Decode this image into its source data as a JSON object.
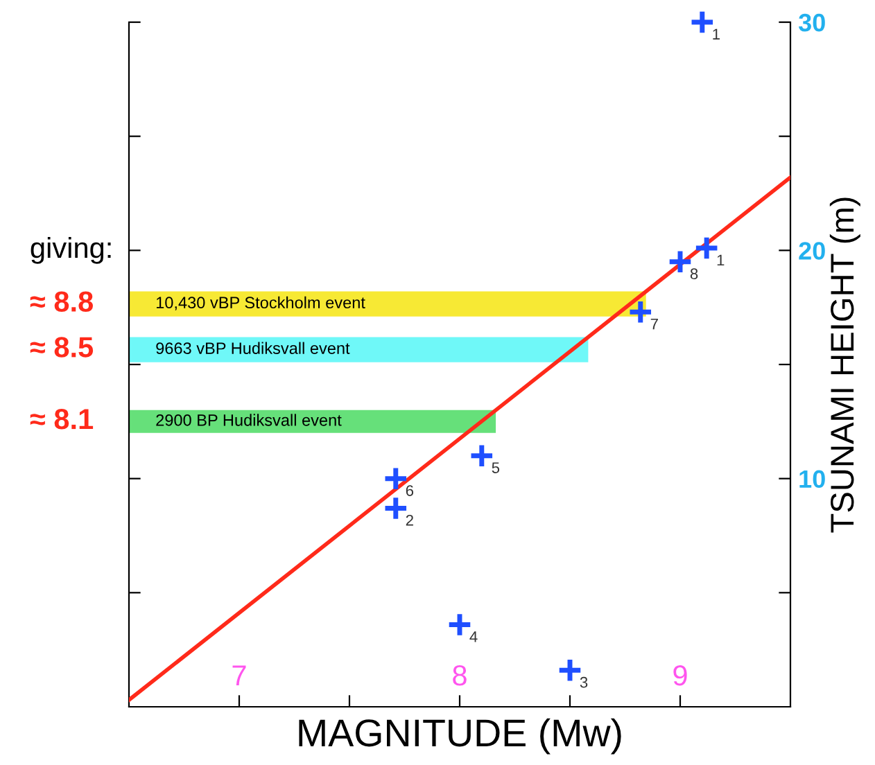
{
  "chart_data": {
    "type": "scatter",
    "xlabel": "MAGNITUDE (Mw)",
    "ylabel": "TSUNAMI HEIGHT (m)",
    "xlim": [
      6.5,
      9.5
    ],
    "ylim": [
      0,
      30
    ],
    "xticks": [
      7,
      {
        "value": 7.5,
        "label": null
      },
      8,
      {
        "value": 8.5,
        "label": null
      },
      9
    ],
    "yticks": [
      {
        "value": 5,
        "label": null
      },
      10,
      {
        "value": 15,
        "label": null
      },
      20,
      {
        "value": 25,
        "label": null
      },
      30
    ],
    "grid": false,
    "legend": false,
    "marker": "cross",
    "series": [
      {
        "color": "#1f4fff",
        "x": [
          9.1,
          9.12,
          9.0,
          8.82,
          8.1,
          7.71,
          7.71,
          8.0,
          8.5
        ],
        "values": [
          30,
          20.1,
          19.5,
          17.3,
          11.0,
          10.0,
          8.7,
          3.6,
          1.6
        ]
      },
      {
        "type": "line",
        "color": "#ff2a1a",
        "x": [
          6.5,
          9.5
        ],
        "values": [
          0.3,
          23.2
        ],
        "line_style": "solid",
        "marker": "none"
      }
    ],
    "bands": [
      {
        "axis": "y",
        "from": 17.1,
        "to": 18.2,
        "label": "10,430 vBP Stockholm event",
        "color": "#f7e934"
      },
      {
        "axis": "y",
        "from": 15.1,
        "to": 16.2,
        "label": "9663 vBP Hudiksvall event",
        "color": "#6ff8f8"
      },
      {
        "axis": "y",
        "from": 12.0,
        "to": 13.0,
        "label": "2900 BP Hudiksvall event",
        "color": "#66e07a"
      }
    ],
    "annotations": [
      "giving:",
      "≈ 8.8",
      "≈ 8.5",
      "≈ 8.1",
      {
        "text": "1",
        "x": 9.1,
        "y": 30
      },
      {
        "text": "1",
        "x": 9.12,
        "y": 20.1
      },
      {
        "text": "8",
        "x": 9.0,
        "y": 19.5
      },
      {
        "text": "7",
        "x": 8.82,
        "y": 17.3
      },
      {
        "text": "5",
        "x": 8.1,
        "y": 11.0
      },
      {
        "text": "6",
        "x": 7.71,
        "y": 10.0
      },
      {
        "text": "2",
        "x": 7.71,
        "y": 8.7
      },
      {
        "text": "4",
        "x": 8.0,
        "y": 3.6
      },
      {
        "text": "3",
        "x": 8.5,
        "y": 1.6
      }
    ]
  }
}
